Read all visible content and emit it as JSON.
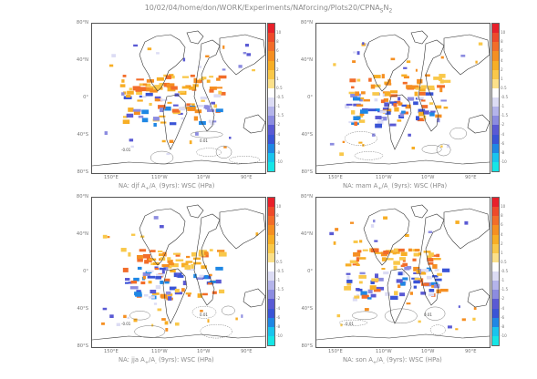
{
  "header": {
    "path_prefix": "10/02/04/home/don/WORK/Experiments/NAforcing/Plots20/CPNA",
    "path_sub1": "S",
    "path_mid": "N",
    "path_sub2": "2"
  },
  "axes": {
    "lat_labels": [
      "80°N",
      "40°N",
      "0°",
      "40°S",
      "80°S"
    ],
    "lon_labels": [
      "150°E",
      "110°W",
      "10°W",
      "90°E"
    ]
  },
  "panels": [
    {
      "id": "djf",
      "prefix": "NA: djf A",
      "sub1": "+",
      "mid": "/A",
      "sub2": "-",
      "suffix": " (9yrs): WSC (HPa)",
      "contour_labels": [
        "0.01",
        "-0.01"
      ]
    },
    {
      "id": "mam",
      "prefix": "NA: mam A",
      "sub1": "+",
      "mid": "/A",
      "sub2": "-",
      "suffix": " (9yrs): WSC (HPa)",
      "contour_labels": []
    },
    {
      "id": "jja",
      "prefix": "NA: jja A",
      "sub1": "+",
      "mid": "/A",
      "sub2": "-",
      "suffix": " (9yrs): WSC (HPa)",
      "contour_labels": [
        "0.01",
        "-0.01"
      ]
    },
    {
      "id": "son",
      "prefix": "NA: son A",
      "sub1": "+",
      "mid": "/A",
      "sub2": "-",
      "suffix": " (9yrs): WSC (HPa)",
      "contour_labels": [
        "0.01",
        "0.01"
      ]
    }
  ],
  "colorbar": {
    "labels": [
      "10",
      "8",
      "6",
      "4",
      "2",
      "1",
      "0.5",
      "-0.5",
      "-1",
      "-1.5",
      "-2",
      "-4",
      "-6",
      "-8",
      "-10"
    ],
    "colors": [
      "#e8202a",
      "#ee4a2a",
      "#f26d2a",
      "#f58f22",
      "#f7ae25",
      "#f9c84a",
      "#fbe08a",
      "#ffffff",
      "#dcdcf4",
      "#b4b4ea",
      "#8c8ce0",
      "#5a5ad4",
      "#3a54d6",
      "#1f87e4",
      "#19c4ee",
      "#16e6e6"
    ]
  }
}
